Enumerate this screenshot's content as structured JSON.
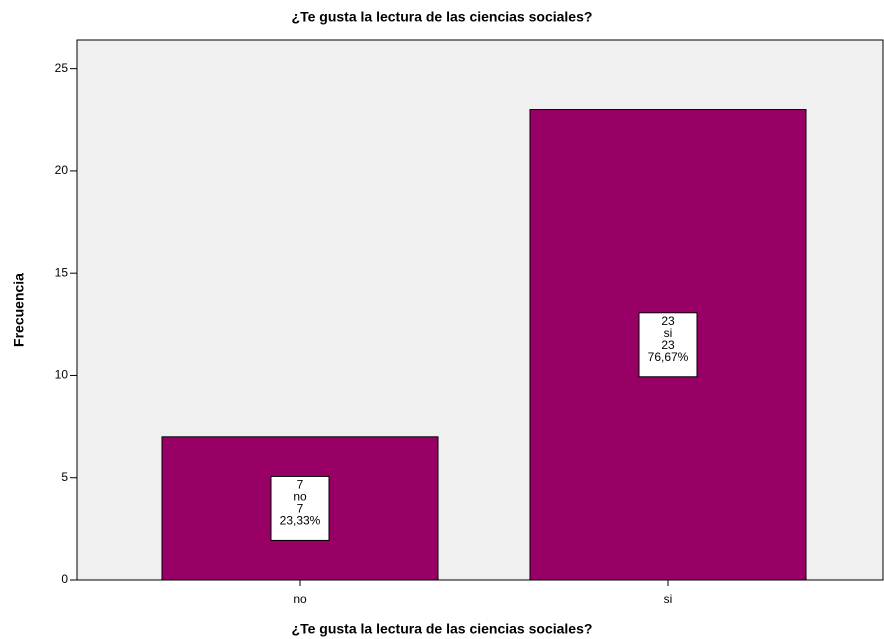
{
  "chart_data": {
    "type": "bar",
    "title": "¿Te gusta la lectura de las ciencias sociales?",
    "x_label": "¿Te gusta la lectura de las ciencias sociales?",
    "y_label": "Frecuencia",
    "categories": [
      "no",
      "si"
    ],
    "values": [
      7,
      23
    ],
    "percents": [
      23.33,
      76.67
    ],
    "percent_labels": [
      "23,33%",
      "76,67%"
    ],
    "color": "#990066",
    "ylim": [
      0,
      26.4
    ],
    "yticks": [
      0,
      5,
      10,
      15,
      20,
      25
    ]
  }
}
